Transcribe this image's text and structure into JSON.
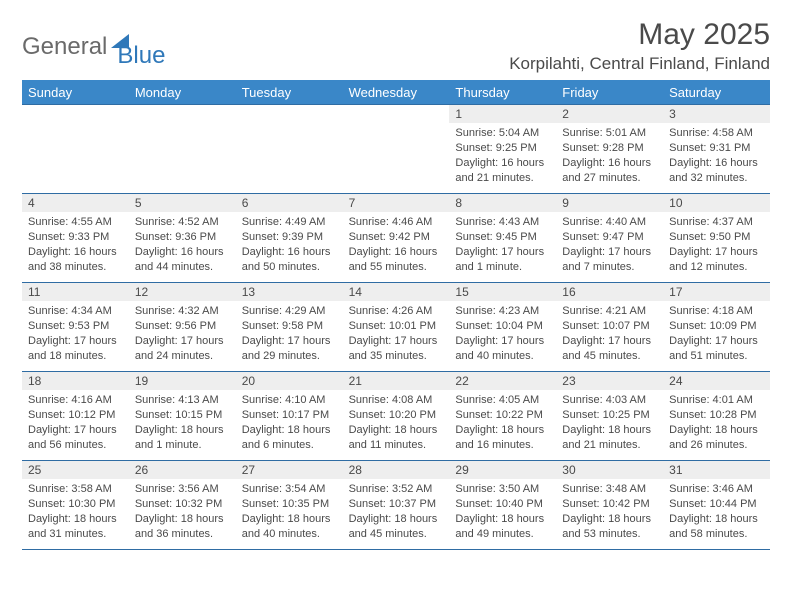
{
  "logo": {
    "general": "General",
    "blue": "Blue"
  },
  "title": "May 2025",
  "location": "Korpilahti, Central Finland, Finland",
  "weekday_header_bg": "#3a87c8",
  "row_border_color": "#2f6ca3",
  "daynum_bg": "#eeeeee",
  "text_color": "#4a4a4a",
  "weekdays": [
    "Sunday",
    "Monday",
    "Tuesday",
    "Wednesday",
    "Thursday",
    "Friday",
    "Saturday"
  ],
  "weeks": [
    [
      null,
      null,
      null,
      null,
      {
        "n": "1",
        "sr": "5:04 AM",
        "ss": "9:25 PM",
        "dl": "16 hours and 21 minutes."
      },
      {
        "n": "2",
        "sr": "5:01 AM",
        "ss": "9:28 PM",
        "dl": "16 hours and 27 minutes."
      },
      {
        "n": "3",
        "sr": "4:58 AM",
        "ss": "9:31 PM",
        "dl": "16 hours and 32 minutes."
      }
    ],
    [
      {
        "n": "4",
        "sr": "4:55 AM",
        "ss": "9:33 PM",
        "dl": "16 hours and 38 minutes."
      },
      {
        "n": "5",
        "sr": "4:52 AM",
        "ss": "9:36 PM",
        "dl": "16 hours and 44 minutes."
      },
      {
        "n": "6",
        "sr": "4:49 AM",
        "ss": "9:39 PM",
        "dl": "16 hours and 50 minutes."
      },
      {
        "n": "7",
        "sr": "4:46 AM",
        "ss": "9:42 PM",
        "dl": "16 hours and 55 minutes."
      },
      {
        "n": "8",
        "sr": "4:43 AM",
        "ss": "9:45 PM",
        "dl": "17 hours and 1 minute."
      },
      {
        "n": "9",
        "sr": "4:40 AM",
        "ss": "9:47 PM",
        "dl": "17 hours and 7 minutes."
      },
      {
        "n": "10",
        "sr": "4:37 AM",
        "ss": "9:50 PM",
        "dl": "17 hours and 12 minutes."
      }
    ],
    [
      {
        "n": "11",
        "sr": "4:34 AM",
        "ss": "9:53 PM",
        "dl": "17 hours and 18 minutes."
      },
      {
        "n": "12",
        "sr": "4:32 AM",
        "ss": "9:56 PM",
        "dl": "17 hours and 24 minutes."
      },
      {
        "n": "13",
        "sr": "4:29 AM",
        "ss": "9:58 PM",
        "dl": "17 hours and 29 minutes."
      },
      {
        "n": "14",
        "sr": "4:26 AM",
        "ss": "10:01 PM",
        "dl": "17 hours and 35 minutes."
      },
      {
        "n": "15",
        "sr": "4:23 AM",
        "ss": "10:04 PM",
        "dl": "17 hours and 40 minutes."
      },
      {
        "n": "16",
        "sr": "4:21 AM",
        "ss": "10:07 PM",
        "dl": "17 hours and 45 minutes."
      },
      {
        "n": "17",
        "sr": "4:18 AM",
        "ss": "10:09 PM",
        "dl": "17 hours and 51 minutes."
      }
    ],
    [
      {
        "n": "18",
        "sr": "4:16 AM",
        "ss": "10:12 PM",
        "dl": "17 hours and 56 minutes."
      },
      {
        "n": "19",
        "sr": "4:13 AM",
        "ss": "10:15 PM",
        "dl": "18 hours and 1 minute."
      },
      {
        "n": "20",
        "sr": "4:10 AM",
        "ss": "10:17 PM",
        "dl": "18 hours and 6 minutes."
      },
      {
        "n": "21",
        "sr": "4:08 AM",
        "ss": "10:20 PM",
        "dl": "18 hours and 11 minutes."
      },
      {
        "n": "22",
        "sr": "4:05 AM",
        "ss": "10:22 PM",
        "dl": "18 hours and 16 minutes."
      },
      {
        "n": "23",
        "sr": "4:03 AM",
        "ss": "10:25 PM",
        "dl": "18 hours and 21 minutes."
      },
      {
        "n": "24",
        "sr": "4:01 AM",
        "ss": "10:28 PM",
        "dl": "18 hours and 26 minutes."
      }
    ],
    [
      {
        "n": "25",
        "sr": "3:58 AM",
        "ss": "10:30 PM",
        "dl": "18 hours and 31 minutes."
      },
      {
        "n": "26",
        "sr": "3:56 AM",
        "ss": "10:32 PM",
        "dl": "18 hours and 36 minutes."
      },
      {
        "n": "27",
        "sr": "3:54 AM",
        "ss": "10:35 PM",
        "dl": "18 hours and 40 minutes."
      },
      {
        "n": "28",
        "sr": "3:52 AM",
        "ss": "10:37 PM",
        "dl": "18 hours and 45 minutes."
      },
      {
        "n": "29",
        "sr": "3:50 AM",
        "ss": "10:40 PM",
        "dl": "18 hours and 49 minutes."
      },
      {
        "n": "30",
        "sr": "3:48 AM",
        "ss": "10:42 PM",
        "dl": "18 hours and 53 minutes."
      },
      {
        "n": "31",
        "sr": "3:46 AM",
        "ss": "10:44 PM",
        "dl": "18 hours and 58 minutes."
      }
    ]
  ],
  "labels": {
    "sunrise": "Sunrise: ",
    "sunset": "Sunset: ",
    "daylight": "Daylight: "
  }
}
